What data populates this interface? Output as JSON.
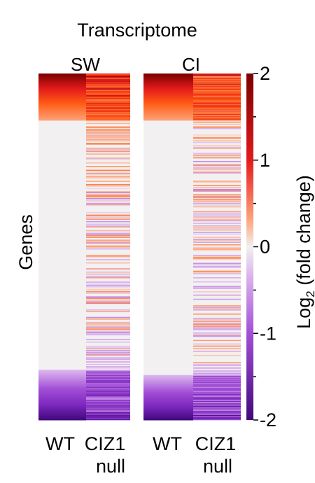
{
  "chart_data": {
    "type": "heatmap",
    "title": "Transcriptome",
    "ylabel": "Genes",
    "colorbar_label_prefix": "Log",
    "colorbar_label_subscript": "2",
    "colorbar_label_suffix": " (fold change)",
    "colorbar_ticks": [
      "2",
      "1",
      "0",
      "-1",
      "-2"
    ],
    "colorbar_tick_values": [
      2,
      1,
      0,
      -1,
      -2
    ],
    "value_range": [
      -2,
      2
    ],
    "colormap": {
      "low": "#4a0e82",
      "mid_low": "#a855d8",
      "neutral": "#f2f0f0",
      "mid_high": "#ff6a10",
      "high": "#8b0000"
    },
    "panels": [
      {
        "name": "SW",
        "columns": [
          "WT",
          "CIZ1 null"
        ],
        "wt_upregulated_fraction": 0.135,
        "wt_downregulated_fraction": 0.145,
        "wt_up_range": [
          0.4,
          2.0
        ],
        "wt_down_range": [
          -0.4,
          -2.0
        ]
      },
      {
        "name": "CI",
        "columns": [
          "WT",
          "CIZ1 null"
        ],
        "wt_upregulated_fraction": 0.135,
        "wt_downregulated_fraction": 0.13,
        "wt_up_range": [
          0.4,
          2.0
        ],
        "wt_down_range": [
          -0.4,
          -2.0
        ]
      }
    ],
    "column_labels": [
      {
        "line1": "WT",
        "line2": ""
      },
      {
        "line1": "CIZ1",
        "line2": "null"
      },
      {
        "line1": "WT",
        "line2": ""
      },
      {
        "line1": "CIZ1",
        "line2": "null"
      }
    ]
  }
}
